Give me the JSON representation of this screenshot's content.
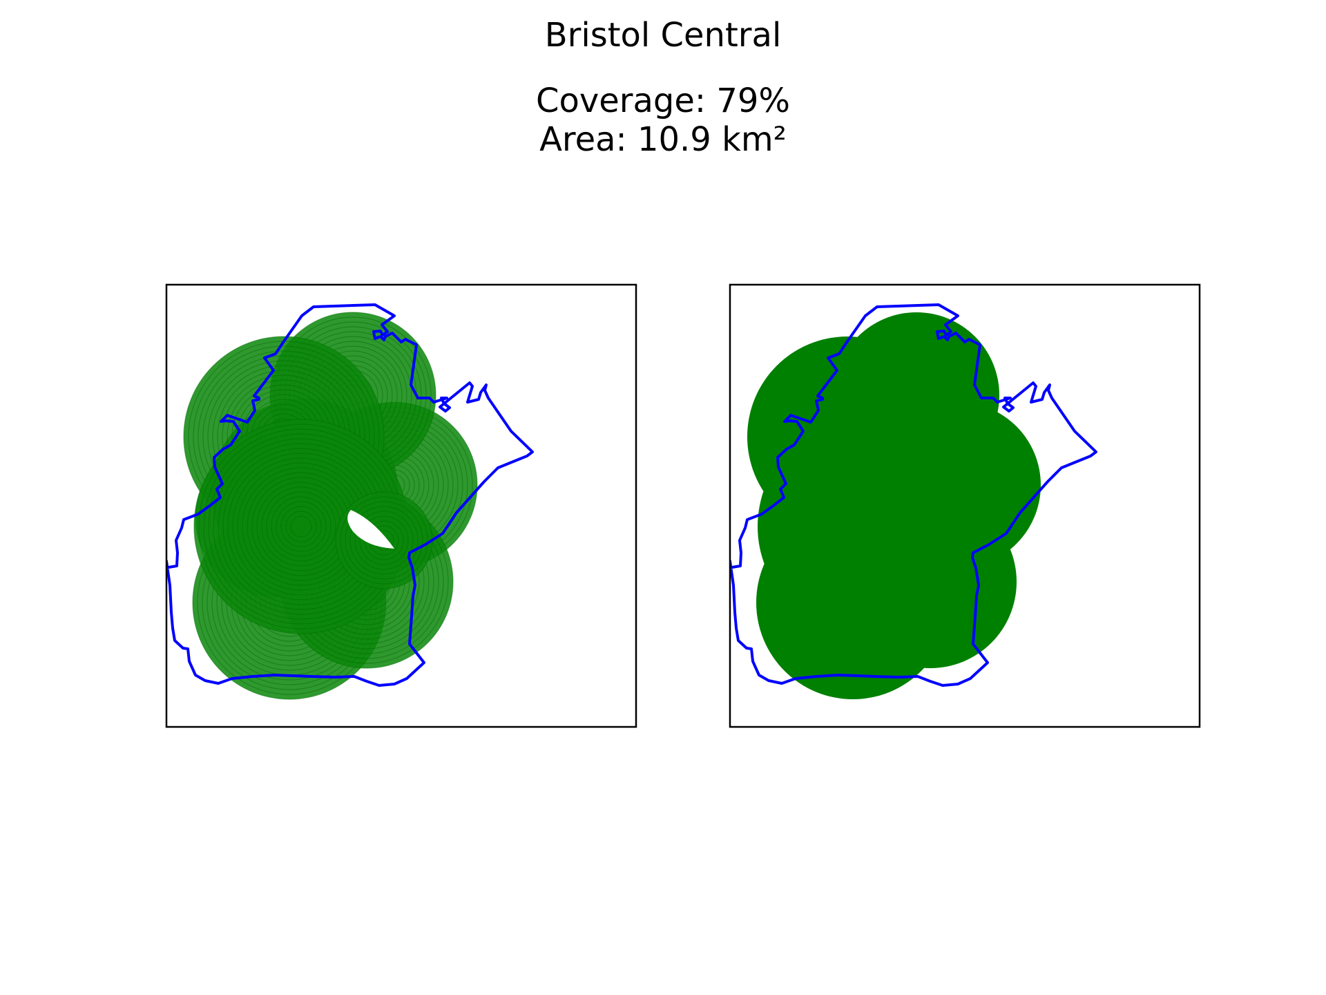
{
  "figure": {
    "title": "Bristol Central",
    "coverage_text": "Coverage: 79%",
    "area_text": "Area: 10.9 km²"
  },
  "panels": [
    {
      "name": "left",
      "style": "individual-rings"
    },
    {
      "name": "right",
      "style": "merged-union"
    }
  ],
  "colors": {
    "boundary": "#0000ff",
    "coverage": "#008000",
    "frame": "#000000",
    "background": "#ffffff"
  }
}
